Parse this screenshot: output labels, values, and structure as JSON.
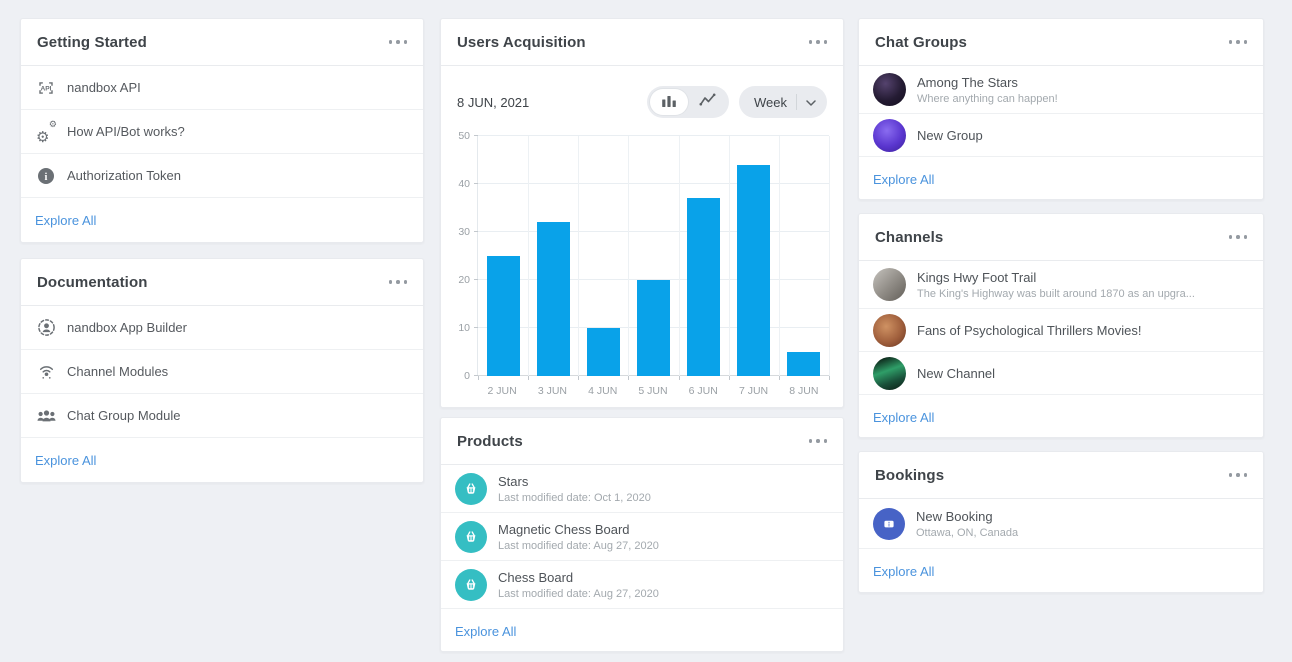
{
  "colors": {
    "page_bg": "#eef0f4",
    "accent_link_blue": "#4a93dd",
    "bar_blue": "#09a2e9",
    "product_teal": "#35bec3",
    "booking_blue": "#4763c6"
  },
  "cards": {
    "getting_started": {
      "title": "Getting Started",
      "menu_icon": "ellipsis-icon",
      "items": [
        {
          "label": "nandbox API",
          "icon": "api-icon"
        },
        {
          "label": "How API/Bot works?",
          "icon": "gears-icon"
        },
        {
          "label": "Authorization Token",
          "icon": "info-icon"
        }
      ],
      "explore_all": "Explore All"
    },
    "documentation": {
      "title": "Documentation",
      "menu_icon": "ellipsis-icon",
      "items": [
        {
          "label": "nandbox App Builder",
          "icon": "app-builder-icon"
        },
        {
          "label": "Channel Modules",
          "icon": "broadcast-icon"
        },
        {
          "label": "Chat Group Module",
          "icon": "people-group-icon"
        }
      ],
      "explore_all": "Explore All"
    },
    "users_acquisition": {
      "title": "Users Acquisition",
      "menu_icon": "ellipsis-icon",
      "date_label": "8 JUN, 2021",
      "view_toggle": {
        "selected": "bar",
        "bar_icon": "bar-chart-icon",
        "line_icon": "line-chart-icon"
      },
      "range_value": "Week",
      "range_chevron": "chevron-down-icon"
    },
    "products": {
      "title": "Products",
      "menu_icon": "ellipsis-icon",
      "items": [
        {
          "name": "Stars",
          "meta": "Last modified date: Oct 1, 2020",
          "icon": "basket-icon"
        },
        {
          "name": "Magnetic Chess Board",
          "meta": "Last modified date: Aug 27, 2020",
          "icon": "basket-icon"
        },
        {
          "name": "Chess Board",
          "meta": "Last modified date: Aug 27, 2020",
          "icon": "basket-icon"
        }
      ],
      "explore_all": "Explore All"
    },
    "chat_groups": {
      "title": "Chat Groups",
      "menu_icon": "ellipsis-icon",
      "items": [
        {
          "name": "Among The Stars",
          "subtitle": "Where anything can happen!",
          "avatar": "among-the-stars-avatar"
        },
        {
          "name": "New Group",
          "subtitle": "",
          "avatar": "new-group-avatar"
        }
      ],
      "explore_all": "Explore All"
    },
    "channels": {
      "title": "Channels",
      "menu_icon": "ellipsis-icon",
      "items": [
        {
          "name": "Kings Hwy Foot Trail",
          "subtitle": "The King's Highway was built around 1870 as an upgra...",
          "avatar": "kings-hwy-avatar"
        },
        {
          "name": "Fans of Psychological Thrillers Movies!",
          "subtitle": "",
          "avatar": "fans-thrillers-avatar"
        },
        {
          "name": "New Channel",
          "subtitle": "",
          "avatar": "new-channel-avatar"
        }
      ],
      "explore_all": "Explore All"
    },
    "bookings": {
      "title": "Bookings",
      "menu_icon": "ellipsis-icon",
      "items": [
        {
          "name": "New Booking",
          "subtitle": "Ottawa, ON, Canada",
          "icon": "ticket-icon"
        }
      ],
      "explore_all": "Explore All"
    }
  },
  "chart_data": {
    "type": "bar",
    "title": "Users Acquisition",
    "categories": [
      "2 JUN",
      "3 JUN",
      "4 JUN",
      "5 JUN",
      "6 JUN",
      "7 JUN",
      "8 JUN"
    ],
    "values": [
      25,
      32,
      10,
      20,
      37,
      44,
      5
    ],
    "xlabel": "",
    "ylabel": "",
    "ylim": [
      0,
      50
    ],
    "yticks": [
      0,
      10,
      20,
      30,
      40,
      50
    ],
    "bar_color": "#09a2e9",
    "grid": true,
    "legend_position": "none",
    "period": "Week",
    "date_label": "8 JUN, 2021"
  }
}
